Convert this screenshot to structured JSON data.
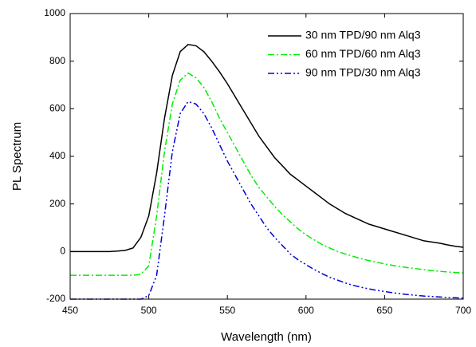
{
  "chart_data": {
    "type": "line",
    "x_label": "Wavelength (nm)",
    "y_label": "PL Spectrum",
    "x": [
      450,
      455,
      460,
      465,
      470,
      475,
      480,
      485,
      490,
      495,
      500,
      505,
      510,
      515,
      520,
      525,
      530,
      535,
      540,
      545,
      550,
      555,
      560,
      565,
      570,
      575,
      580,
      585,
      590,
      595,
      600,
      605,
      610,
      615,
      620,
      625,
      630,
      635,
      640,
      645,
      650,
      655,
      660,
      665,
      670,
      675,
      680,
      685,
      690,
      695,
      700
    ],
    "series": [
      {
        "name": "30 nm TPD/90 nm Alq3",
        "color": "#000000",
        "style": "solid",
        "values": [
          0,
          0,
          0,
          0,
          0,
          0,
          2,
          5,
          15,
          60,
          150,
          330,
          560,
          740,
          840,
          870,
          865,
          840,
          800,
          755,
          705,
          650,
          595,
          540,
          485,
          440,
          395,
          360,
          325,
          300,
          275,
          250,
          225,
          200,
          180,
          160,
          145,
          130,
          115,
          105,
          95,
          85,
          75,
          65,
          55,
          45,
          40,
          35,
          28,
          22,
          18
        ]
      },
      {
        "name": "60 nm TPD/60 nm Alq3",
        "color": "#00ee00",
        "style": "dashdot",
        "values": [
          -100,
          -100,
          -100,
          -100,
          -100,
          -100,
          -100,
          -100,
          -100,
          -95,
          -60,
          150,
          420,
          620,
          720,
          750,
          730,
          690,
          630,
          560,
          500,
          440,
          380,
          320,
          270,
          230,
          190,
          155,
          125,
          95,
          70,
          50,
          30,
          15,
          0,
          -10,
          -20,
          -30,
          -38,
          -45,
          -52,
          -58,
          -63,
          -68,
          -72,
          -76,
          -80,
          -83,
          -86,
          -88,
          -90
        ]
      },
      {
        "name": "90 nm TPD/30 nm Alq3",
        "color": "#0000dd",
        "style": "dashdotdot",
        "values": [
          -200,
          -200,
          -200,
          -200,
          -200,
          -200,
          -200,
          -200,
          -200,
          -200,
          -185,
          -100,
          150,
          420,
          580,
          630,
          620,
          580,
          520,
          450,
          380,
          320,
          260,
          200,
          150,
          100,
          60,
          25,
          -10,
          -35,
          -55,
          -75,
          -92,
          -108,
          -120,
          -132,
          -142,
          -150,
          -157,
          -163,
          -168,
          -173,
          -177,
          -181,
          -184,
          -187,
          -189,
          -191,
          -193,
          -194,
          -196
        ]
      }
    ],
    "xlim": [
      450,
      700
    ],
    "xticks": [
      450,
      500,
      550,
      600,
      650,
      700
    ],
    "ylim": [
      -200,
      1000
    ],
    "yticks": [
      -200,
      0,
      200,
      400,
      600,
      800,
      1000
    ],
    "legend": "top-right"
  }
}
